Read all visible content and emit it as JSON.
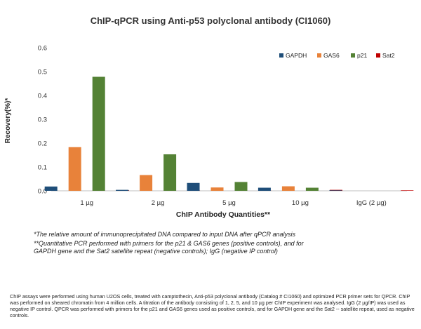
{
  "chart_data": {
    "type": "bar",
    "title": "ChIP-qPCR using Anti-p53 polyclonal antibody (CI1060)",
    "xlabel": "ChIP Antibody Quantities**",
    "ylabel": "Recovery(%)*",
    "categories": [
      "1 µg",
      "2 µg",
      "5 µg",
      "10 µg",
      "IgG (2 µg)"
    ],
    "ylim": [
      0,
      0.6
    ],
    "yticks": [
      "0.0",
      "0.1",
      "0.2",
      "0.3",
      "0.4",
      "0.5",
      "0.6"
    ],
    "legend_position": "top-right",
    "grid": false,
    "series": [
      {
        "name": "GAPDH",
        "color": "#1f4e79",
        "values": [
          0.018,
          0.004,
          0.033,
          0.013,
          0.002
        ]
      },
      {
        "name": "GAS6",
        "color": "#e8823a",
        "values": [
          0.183,
          0.066,
          0.014,
          0.019,
          0.0
        ]
      },
      {
        "name": "p21",
        "color": "#548235",
        "values": [
          0.478,
          0.153,
          0.037,
          0.013,
          0.0
        ]
      },
      {
        "name": "Sat2",
        "color": "#c00000",
        "values": [
          0.003,
          0.001,
          0.001,
          0.004,
          0.002
        ]
      }
    ]
  },
  "footnotes": {
    "line1": "*The relative amount of immunoprecipitated DNA compared to input DNA after qPCR analysis",
    "line2": "**Quantitative PCR performed with primers for the p21 & GAS6 genes (positive controls), and for",
    "line3": "GAPDH gene and the Sat2 satellite repeat (negative controls); IgG (negative IP control)"
  },
  "caption": "ChIP assays were performed using human U2OS cells, treated with camptothecin, Anti-p53 polyclonal antibody (Catalog # CI1060) and optimized PCR primer sets for QPCR. ChIP was performed on sheared chromatin from 4 million cells. A titration of the antibody consisting of 1, 2, 5, and 10 µg per ChIP experiment was analysed. IgG (2 µg/IP) was used as negative IP control. QPCR was performed with primers for the p21 and GAS6 genes used as positive controls, and for GAPDH gene and the Sat2 -- satellite repeat, used as negative controls."
}
